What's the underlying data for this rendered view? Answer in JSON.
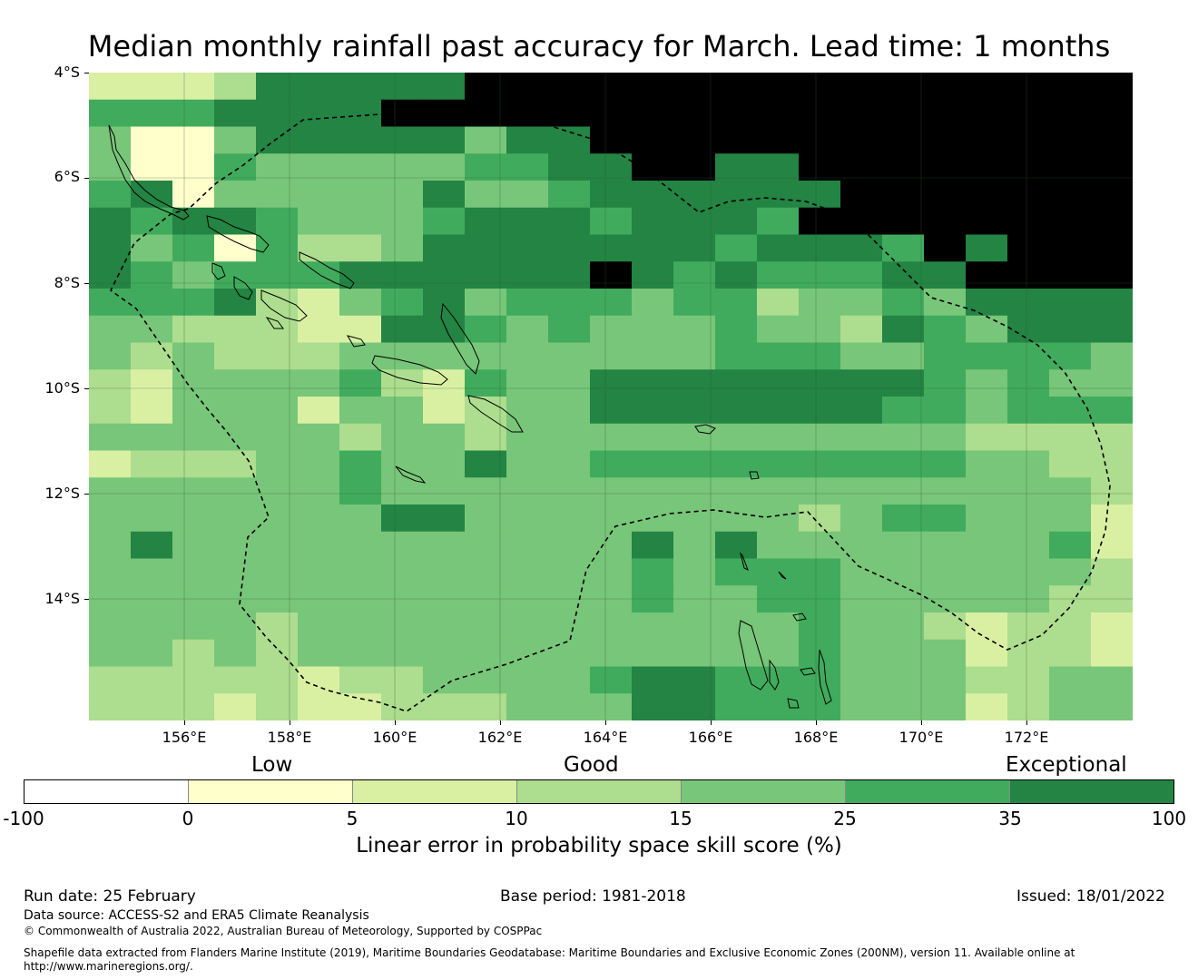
{
  "title": "Median monthly rainfall past accuracy for March. Lead time: 1 months",
  "map": {
    "lat_labels": [
      "4°S",
      "6°S",
      "8°S",
      "10°S",
      "12°S",
      "14°S"
    ],
    "lon_labels": [
      "156°E",
      "158°E",
      "160°E",
      "162°E",
      "164°E",
      "166°E",
      "168°E",
      "170°E",
      "172°E"
    ],
    "lon_range": [
      154.2,
      174.0
    ],
    "lat_range": [
      -4.0,
      -16.3
    ],
    "grid_cell_codes": [
      "2223666667777777777777777",
      "5556666777777777777777777",
      "4114666664667777777777777",
      "4115444445566776677777777",
      "5614444464456666667777777",
      "6566544456665666577777777",
      "6451533466666665666576777",
      "6545556666667656555667777",
      "5556324564555455344546666",
      "4433322665454445443654666",
      "4343334444444445554455554",
      "3244445325446666666654544",
      "3244424423446666666554555",
      "4444443443444444444443333",
      "2333445446445555555554433",
      "4444445444444444444444443",
      "4444444664444444434554442",
      "4644444444444646444444452",
      "4444444444444545554444443",
      "4444444444444544554444433",
      "4444344444444444454432332",
      "4434344444444444454442332",
      "3333323344445665554443344",
      "3332322333444665554442344"
    ]
  },
  "legend": {
    "palette": [
      "#ffffff",
      "#ffffcc",
      "#d9f0a3",
      "#addd8e",
      "#78c679",
      "#41ab5d",
      "#238443"
    ],
    "ticks": [
      "-100",
      "0",
      "5",
      "10",
      "15",
      "25",
      "35",
      "100"
    ],
    "categories": {
      "low": "Low",
      "good": "Good",
      "exceptional": "Exceptional"
    },
    "axis_label": "Linear error in probability space skill score (%)"
  },
  "footer": {
    "run_date": "Run date: 25 February",
    "base_period": "Base period: 1981-2018",
    "issued": "Issued: 18/01/2022",
    "data_source": "Data source: ACCESS-S2 and ERA5 Climate Reanalysis",
    "copyright": "© Commonwealth of Australia 2022, Australian Bureau of Meteorology, Supported by COSPPac",
    "shapefile_line1": "Shapefile data extracted from Flanders Marine Institute (2019), Maritime Boundaries Geodatabase: Maritime Boundaries and Exclusive Economic Zones (200NM), version 11. Available online at",
    "shapefile_line2": "http://www.marineregions.org/."
  }
}
